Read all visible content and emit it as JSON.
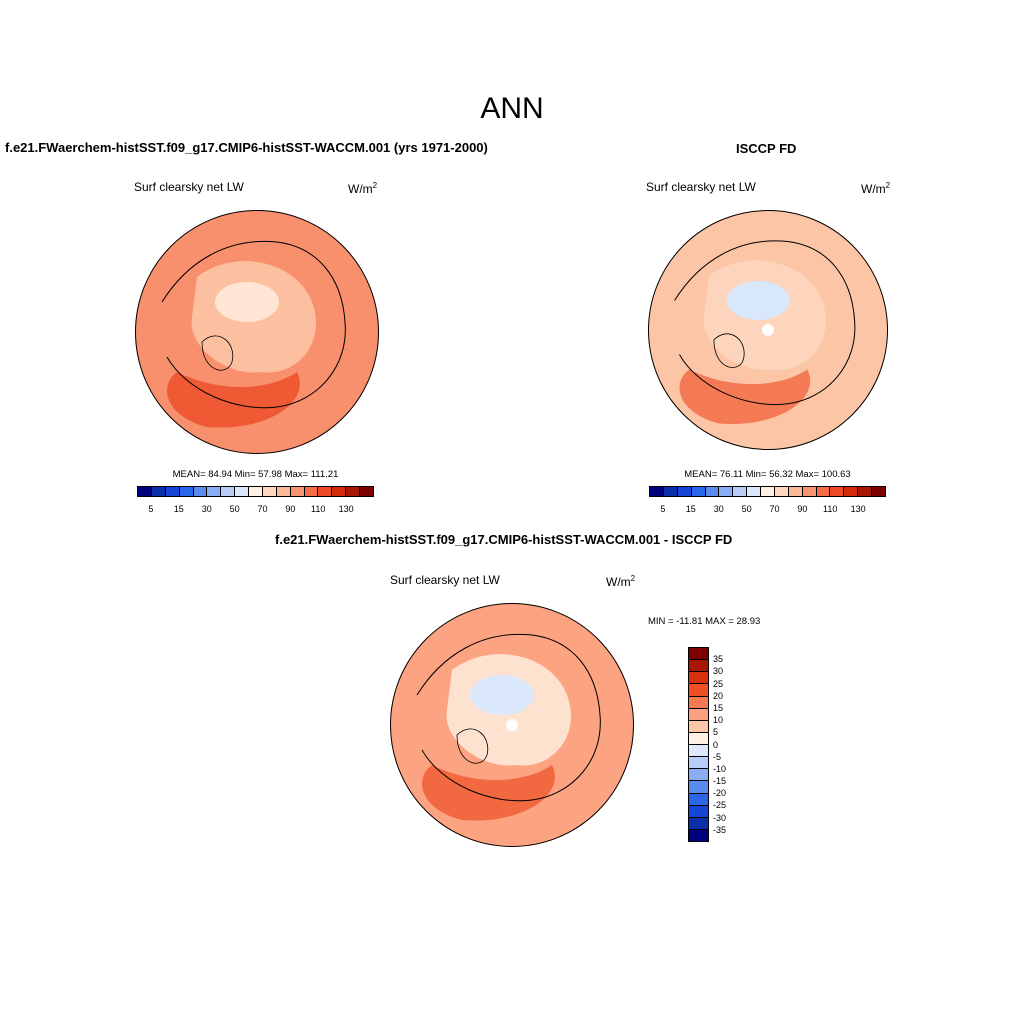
{
  "title": "ANN",
  "panels": [
    {
      "title": "f.e21.FWaerchem-histSST.f09_g17.CMIP6-histSST-WACCM.001 (yrs 1971-2000)",
      "variable": "Surf clearsky net LW",
      "units": "W/m",
      "units_sup": "2",
      "stats": "MEAN=  84.94  Min=  57.98  Max= 111.21"
    },
    {
      "title": "ISCCP FD",
      "variable": "Surf clearsky net LW",
      "units": "W/m",
      "units_sup": "2",
      "stats": "MEAN=  76.11  Min=  56.32  Max= 100.63"
    },
    {
      "title": "f.e21.FWaerchem-histSST.f09_g17.CMIP6-histSST-WACCM.001 - ISCCP FD",
      "variable": "Surf clearsky net LW",
      "units": "W/m",
      "units_sup": "2",
      "stats": "MIN = -11.81 MAX =  28.93"
    }
  ],
  "field_colorbar": {
    "colors": [
      "#00007f",
      "#0a2fa8",
      "#1546d6",
      "#2a66e8",
      "#5a8cf0",
      "#8aaef5",
      "#b8cdf8",
      "#dce8fb",
      "#fff1e4",
      "#fed7bd",
      "#fdb898",
      "#fb9472",
      "#f66e4a",
      "#ee4a26",
      "#d62a0f",
      "#aa1606",
      "#7c0000"
    ],
    "tick_labels": [
      "5",
      "15",
      "30",
      "50",
      "70",
      "90",
      "110",
      "130"
    ],
    "tick_positions": [
      1,
      3,
      5,
      7,
      9,
      11,
      13,
      15
    ]
  },
  "diff_colorbar": {
    "colors": [
      "#7c0000",
      "#aa1606",
      "#d6300e",
      "#ee5024",
      "#f77a52",
      "#fba07e",
      "#fdc7a8",
      "#fff1e4",
      "#dce8fb",
      "#b8cdf8",
      "#8aaef5",
      "#5a8cf0",
      "#2a66e8",
      "#1546d6",
      "#0a2fa8",
      "#00007f"
    ],
    "tick_labels": [
      "35",
      "30",
      "25",
      "20",
      "15",
      "10",
      "5",
      "0",
      "-5",
      "-10",
      "-15",
      "-20",
      "-25",
      "-30",
      "-35"
    ]
  },
  "maps": {
    "base_fill": [
      "#f9906d",
      "#fcc5a6",
      "#fca382"
    ],
    "ocean_fill": [
      "#fcc0a0",
      "#fdd4bc",
      "#fde2cf"
    ],
    "dark_patch": [
      "#ef5a35",
      "#f47a56",
      "#f26840"
    ],
    "light_patch": [
      "#ffe5d4",
      "#d9e7fb",
      "#dbe7fb"
    ],
    "pole_hole": [
      false,
      true,
      true
    ]
  }
}
